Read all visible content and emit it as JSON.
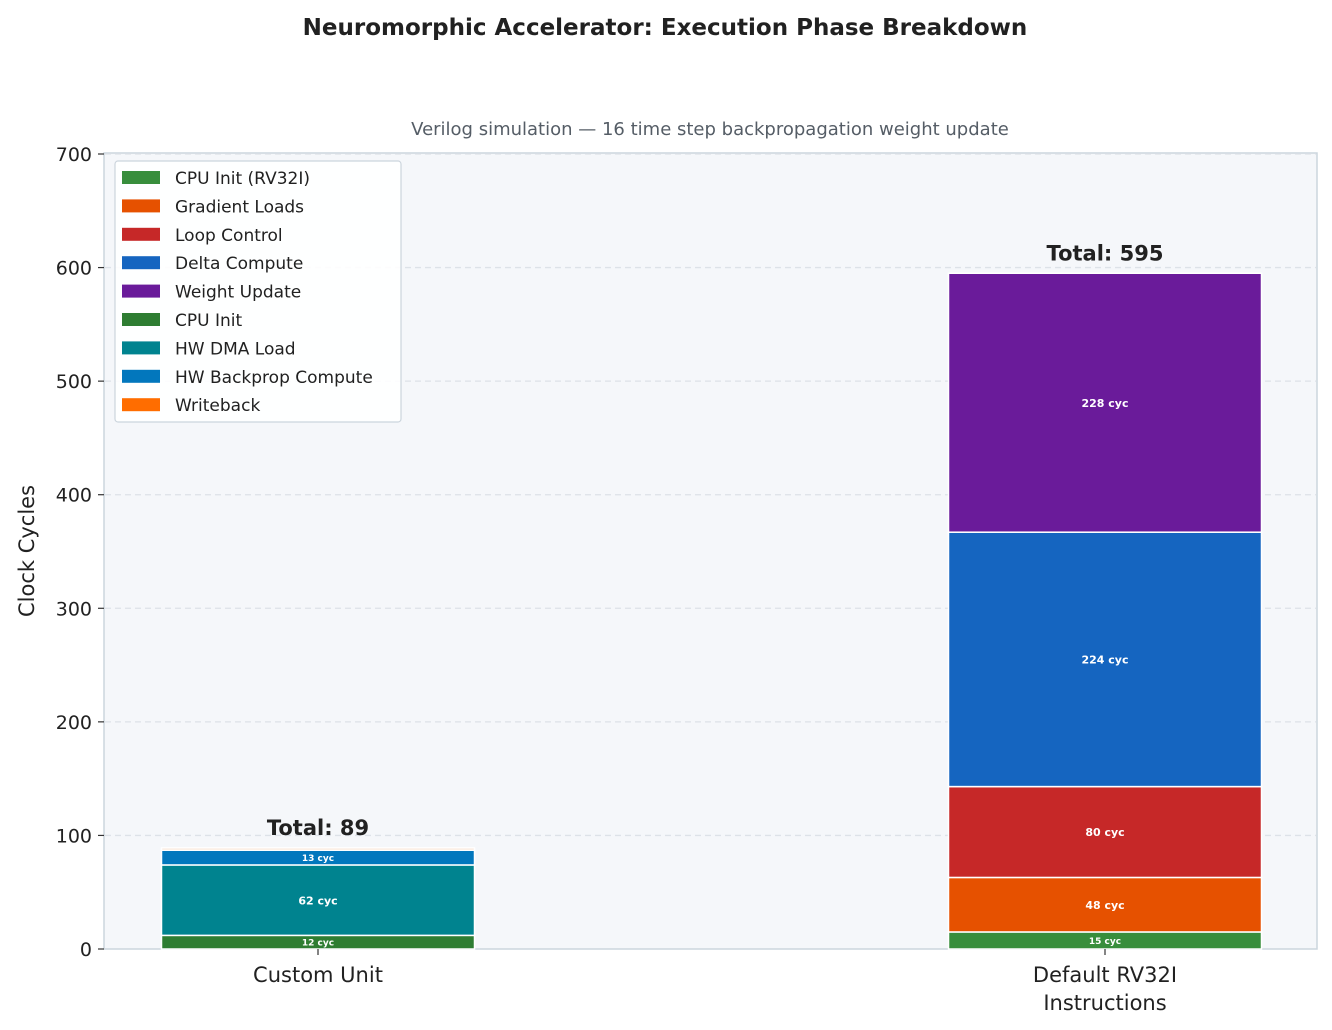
{
  "chart_data": {
    "type": "bar",
    "stacked": true,
    "title": "Neuromorphic Accelerator: Execution Phase Breakdown",
    "subtitle": "Verilog simulation  —  16 time step backpropagation weight update",
    "xlabel": "",
    "ylabel": "Clock Cycles",
    "ylim": [
      0,
      700
    ],
    "yticks": [
      0,
      100,
      200,
      300,
      400,
      500,
      600,
      700
    ],
    "grid": "y-dashed",
    "legend_placement": "top-left",
    "categories": [
      "Custom Unit",
      "Default RV32I\nInstructions"
    ],
    "totals": [
      89,
      595
    ],
    "total_label_prefix": "Total: ",
    "segment_label_suffix": " cyc",
    "series": [
      {
        "name": "CPU Init (RV32I)",
        "color": "#388e3c",
        "values": [
          0,
          15
        ]
      },
      {
        "name": "Gradient Loads",
        "color": "#e65100",
        "values": [
          0,
          48
        ]
      },
      {
        "name": "Loop Control",
        "color": "#c62828",
        "values": [
          0,
          80
        ]
      },
      {
        "name": "Delta Compute",
        "color": "#1565c0",
        "values": [
          0,
          224
        ]
      },
      {
        "name": "Weight Update",
        "color": "#6a1b9a",
        "values": [
          0,
          228
        ]
      },
      {
        "name": "CPU Init",
        "color": "#2e7d32",
        "values": [
          12,
          0
        ]
      },
      {
        "name": "HW DMA Load",
        "color": "#00838f",
        "values": [
          62,
          0
        ]
      },
      {
        "name": "HW Backprop Compute",
        "color": "#0277bd",
        "values": [
          13,
          0
        ]
      },
      {
        "name": "Writeback",
        "color": "#ff6d00",
        "values": [
          2,
          0
        ]
      }
    ]
  }
}
